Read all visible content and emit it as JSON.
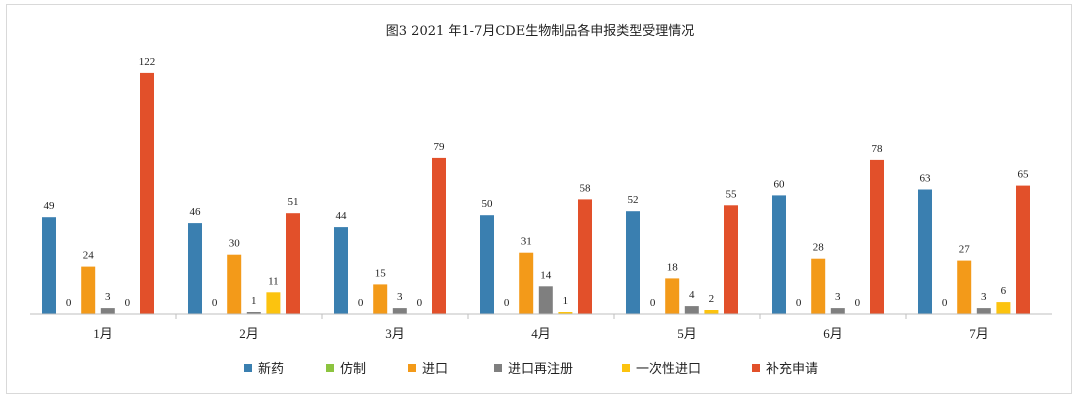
{
  "chart_data": {
    "type": "bar",
    "title": "图3  2021 年1-7月CDE生物制品各申报类型受理情况",
    "categories": [
      "1月",
      "2月",
      "3月",
      "4月",
      "5月",
      "6月",
      "7月"
    ],
    "ylim": [
      0,
      125
    ],
    "grid": false,
    "legend_position": "bottom",
    "series": [
      {
        "name": "新药",
        "color": "#3a7fb0",
        "values": [
          49,
          46,
          44,
          50,
          52,
          60,
          63
        ]
      },
      {
        "name": "仿制",
        "color": "#8cc43f",
        "values": [
          0,
          0,
          0,
          0,
          0,
          0,
          0
        ]
      },
      {
        "name": "进口",
        "color": "#f39a19",
        "values": [
          24,
          30,
          15,
          31,
          18,
          28,
          27
        ]
      },
      {
        "name": "进口再注册",
        "color": "#7f7f7f",
        "values": [
          3,
          1,
          3,
          14,
          4,
          3,
          3
        ]
      },
      {
        "name": "一次性进口",
        "color": "#fcc30f",
        "values": [
          0,
          11,
          0,
          1,
          2,
          0,
          6
        ]
      },
      {
        "name": "补充申请",
        "color": "#e2502a",
        "values": [
          122,
          51,
          79,
          58,
          55,
          78,
          65
        ]
      }
    ]
  }
}
